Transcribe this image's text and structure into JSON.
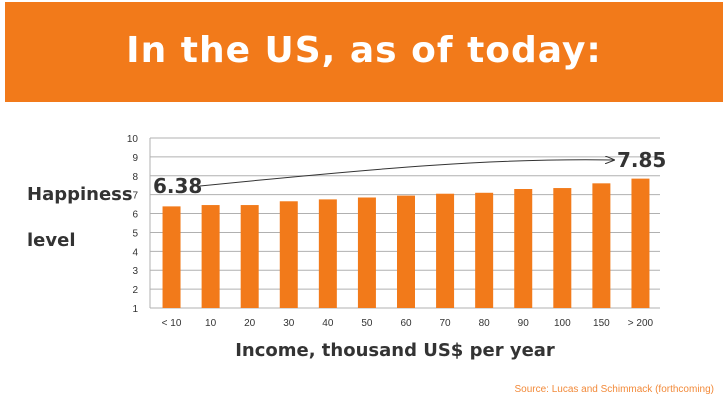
{
  "header": {
    "title": "In the US, as of today:"
  },
  "axis_labels": {
    "y_line1": "Happiness",
    "y_line2": "level",
    "x": "Income, thousand US$ per year"
  },
  "source": "Source: Lucas and Schimmack (forthcoming)",
  "colors": {
    "banner": "#f27a1a",
    "bar": "#f27a1a",
    "text": "#333333"
  },
  "chart_data": {
    "type": "bar",
    "title": "In the US, as of today:",
    "xlabel": "Income, thousand US$ per year",
    "ylabel": "Happiness level",
    "categories": [
      "< 10",
      "10",
      "20",
      "30",
      "40",
      "50",
      "60",
      "70",
      "80",
      "90",
      "100",
      "150",
      "> 200"
    ],
    "values": [
      6.38,
      6.45,
      6.45,
      6.65,
      6.75,
      6.85,
      6.95,
      7.05,
      7.1,
      7.3,
      7.35,
      7.6,
      7.85
    ],
    "ylim": [
      1,
      10
    ],
    "yticks": [
      "1",
      "2",
      "3",
      "4",
      "5",
      "6",
      "7",
      "8",
      "9",
      "10"
    ],
    "grid": true,
    "annotations": {
      "start_label": "6.38",
      "end_label": "7.85"
    }
  }
}
